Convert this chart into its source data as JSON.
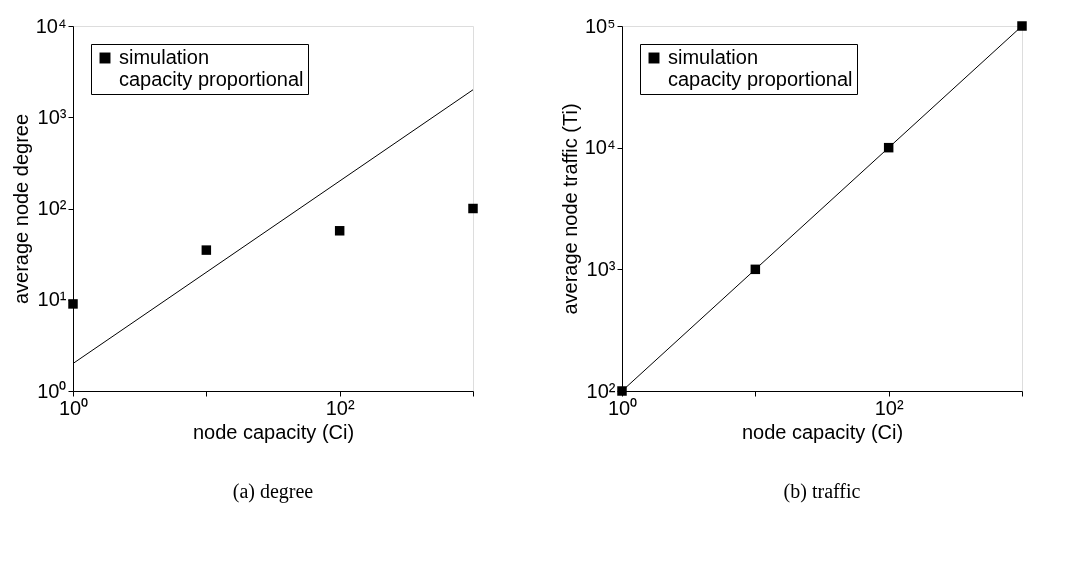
{
  "chart_data": [
    {
      "type": "scatter",
      "xlabel": "node capacity (Ci)",
      "ylabel": "average node degree",
      "log": "xy",
      "grid": false,
      "legend": "top left",
      "xlim": [
        1,
        1000
      ],
      "xticks": [
        {
          "value": 1,
          "label": "10⁰"
        },
        {
          "value": 10,
          "label": null
        },
        {
          "value": 100,
          "label": "10²"
        },
        {
          "value": 1000,
          "label": null
        }
      ],
      "ylim": [
        1,
        10000
      ],
      "yticks": [
        {
          "value": 1,
          "label": "10⁰"
        },
        {
          "value": 10,
          "label": "10¹"
        },
        {
          "value": 100,
          "label": "10²"
        },
        {
          "value": 1000,
          "label": "10³"
        },
        {
          "value": 10000,
          "label": "10⁴"
        }
      ],
      "series": [
        {
          "name": "simulation",
          "marker": "square",
          "color": "#000000",
          "x": [
            1,
            10,
            100,
            1000
          ],
          "values": [
            9,
            35,
            57,
            100
          ]
        },
        {
          "name": "capacity proportional",
          "type": "line",
          "marker": "none",
          "line_style": "solid",
          "color": "#000000",
          "x": [
            1,
            1000
          ],
          "values": [
            2,
            2000
          ]
        }
      ],
      "annotations": [
        "(a) degree"
      ]
    },
    {
      "type": "scatter",
      "xlabel": "node capacity (Ci)",
      "ylabel": "average node traffic (Ti)",
      "log": "xy",
      "grid": false,
      "legend": "top left",
      "xlim": [
        1,
        1000
      ],
      "xticks": [
        {
          "value": 1,
          "label": "10⁰"
        },
        {
          "value": 10,
          "label": null
        },
        {
          "value": 100,
          "label": "10²"
        },
        {
          "value": 1000,
          "label": null
        }
      ],
      "ylim": [
        100,
        100000
      ],
      "yticks": [
        {
          "value": 100,
          "label": "10²"
        },
        {
          "value": 1000,
          "label": "10³"
        },
        {
          "value": 10000,
          "label": "10⁴"
        },
        {
          "value": 100000,
          "label": "10⁵"
        }
      ],
      "series": [
        {
          "name": "simulation",
          "marker": "square",
          "color": "#000000",
          "x": [
            1,
            10,
            100,
            1000
          ],
          "values": [
            100,
            1000,
            10000,
            100000
          ]
        },
        {
          "name": "capacity proportional",
          "type": "line",
          "marker": "none",
          "line_style": "solid",
          "color": "#000000",
          "x": [
            1,
            1000
          ],
          "values": [
            100,
            100000
          ]
        }
      ],
      "annotations": [
        "(b) traffic"
      ]
    }
  ]
}
